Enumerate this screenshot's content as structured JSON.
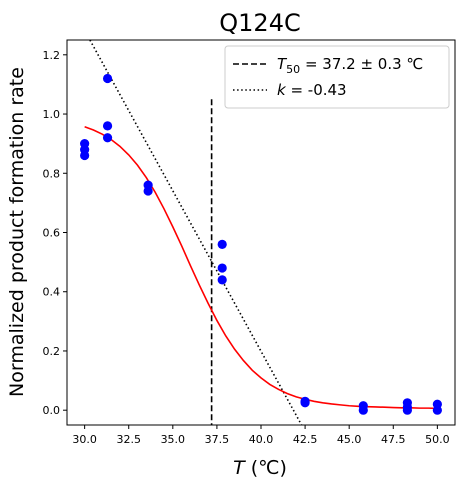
{
  "chart_data": {
    "type": "scatter",
    "title": "Q124C",
    "xlabel": {
      "var": "T",
      "unit": " (℃)"
    },
    "ylabel": "Normalized product formation rate",
    "xlim": [
      29.0,
      51.0
    ],
    "ylim": [
      -0.05,
      1.25
    ],
    "xticks": [
      30.0,
      32.5,
      35.0,
      37.5,
      40.0,
      42.5,
      45.0,
      47.5,
      50.0
    ],
    "xtick_labels": [
      "30.0",
      "32.5",
      "35.0",
      "37.5",
      "40.0",
      "42.5",
      "45.0",
      "47.5",
      "50.0"
    ],
    "yticks": [
      0.0,
      0.2,
      0.4,
      0.6,
      0.8,
      1.0,
      1.2
    ],
    "ytick_labels": [
      "0.0",
      "0.2",
      "0.4",
      "0.6",
      "0.8",
      "1.0",
      "1.2"
    ],
    "grid": false,
    "legend_position": "top-right",
    "points": {
      "color": "#0000ff",
      "x": [
        30.0,
        30.0,
        30.0,
        31.3,
        31.3,
        31.3,
        33.6,
        33.6,
        37.8,
        37.8,
        37.8,
        42.5,
        42.5,
        45.8,
        45.8,
        48.3,
        48.3,
        48.3,
        50.0,
        50.0
      ],
      "y": [
        0.9,
        0.88,
        0.86,
        1.12,
        0.96,
        0.92,
        0.76,
        0.74,
        0.56,
        0.48,
        0.44,
        0.03,
        0.025,
        0.015,
        0.0,
        0.025,
        0.01,
        0.0,
        0.02,
        0.0
      ]
    },
    "fit": {
      "color": "#ff0000",
      "x": [
        30.0,
        30.5,
        31.0,
        31.5,
        32.0,
        32.5,
        33.0,
        33.5,
        34.0,
        34.5,
        35.0,
        35.5,
        36.0,
        36.5,
        37.0,
        37.5,
        38.0,
        38.5,
        39.0,
        39.5,
        40.0,
        40.5,
        41.0,
        41.5,
        42.0,
        42.5,
        43.0,
        43.5,
        44.0,
        44.5,
        45.0,
        45.5,
        46.0,
        46.5,
        47.0,
        47.5,
        48.0,
        48.5,
        49.0,
        49.5,
        50.0
      ],
      "y": [
        0.957,
        0.946,
        0.932,
        0.914,
        0.891,
        0.862,
        0.827,
        0.785,
        0.736,
        0.68,
        0.619,
        0.555,
        0.488,
        0.423,
        0.361,
        0.303,
        0.251,
        0.206,
        0.168,
        0.135,
        0.109,
        0.087,
        0.07,
        0.056,
        0.045,
        0.037,
        0.03,
        0.025,
        0.021,
        0.018,
        0.015,
        0.013,
        0.012,
        0.011,
        0.01,
        0.009,
        0.008,
        0.008,
        0.007,
        0.007,
        0.006
      ]
    },
    "t50_line": {
      "x": 37.2,
      "y_range": [
        -0.05,
        1.05
      ],
      "color": "#000000"
    },
    "slope_line": {
      "x_range": [
        30.3,
        42.3
      ],
      "y_range": [
        1.25,
        -0.05
      ],
      "color": "#000000"
    },
    "legend": [
      {
        "style": "dashed",
        "prefix": "T",
        "subscript": "50",
        "text": " = 37.2 ± 0.3 ℃"
      },
      {
        "style": "dotted",
        "prefix": "k",
        "subscript": "",
        "text": " = -0.43"
      }
    ]
  }
}
